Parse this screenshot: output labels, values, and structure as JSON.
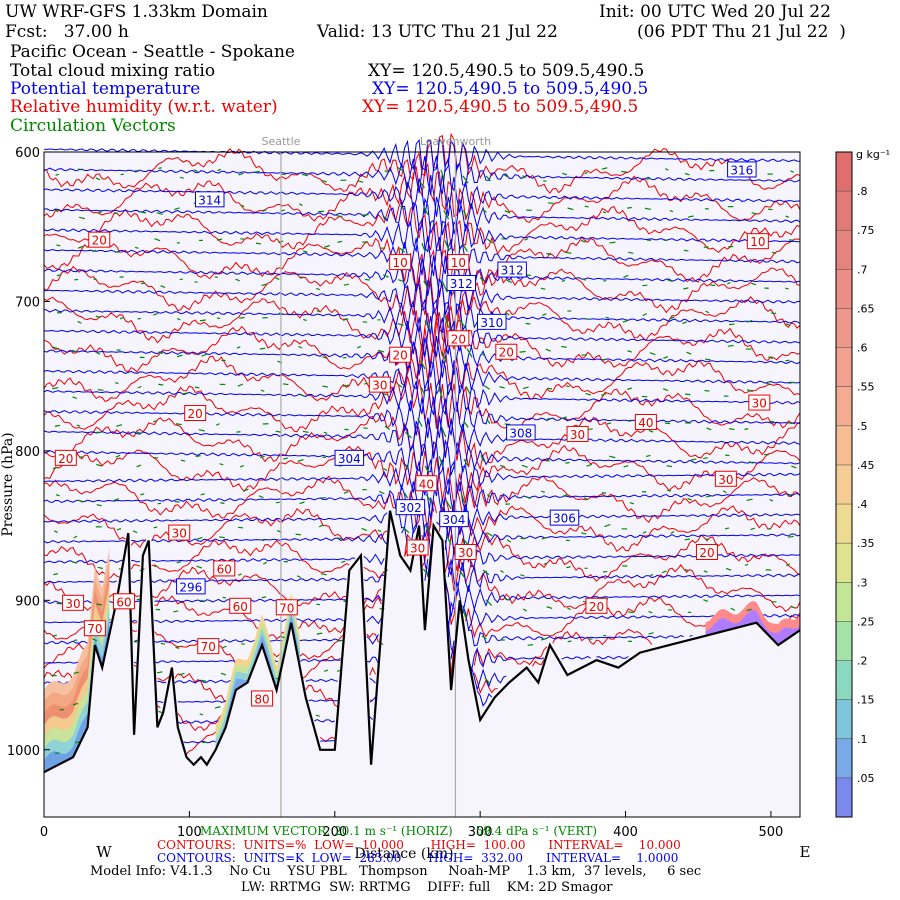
{
  "header": {
    "title": "UW WRF-GFS 1.33km Domain",
    "init": "Init: 00 UTC Wed 20 Jul 22",
    "fcst": "Fcst:   37.00 h",
    "valid": "Valid: 13 UTC Thu 21 Jul 22",
    "valid_local": "(06 PDT Thu 21 Jul 22  )",
    "region": "Pacific Ocean - Seattle - Spokane",
    "field_cloud": "Total cloud mixing ratio",
    "xy_cloud": "XY= 120.5,490.5 to 509.5,490.5",
    "field_theta": "Potential temperature",
    "xy_theta": "XY= 120.5,490.5 to 509.5,490.5",
    "field_rh": "Relative humidity (w.r.t. water)",
    "xy_rh": "XY= 120.5,490.5 to 509.5,490.5",
    "field_vectors": "Circulation Vectors"
  },
  "footer": {
    "max_vector": "MAXIMUM VECTOR: 20.1 m s⁻¹ (HORIZ)      59.4 dPa s⁻¹ (VERT)",
    "rh_contours": "CONTOURS:  UNITS=%  LOW=  10.000       HIGH=  100.00      INTERVAL=    10.000",
    "theta_contours": "CONTOURS:  UNITS=K  LOW=  283.00       HIGH=  332.00      INTERVAL=    1.0000",
    "model_info": "Model Info: V4.1.3    No Cu    YSU PBL   Thompson     Noah-MP    1.3 km,  37 levels,     6 sec",
    "model_info2": "LW: RRTMG  SW: RRTMG    DIFF: full    KM: 2D Smagor"
  },
  "colors": {
    "theta": "#0000ee",
    "rh": "#ee0000",
    "vectors": "#008800",
    "terrain": "#000000",
    "background": "#f6f4fc"
  },
  "chart_data": {
    "type": "line",
    "xlabel": "Distance (km)",
    "ylabel": "Pressure (hPa)",
    "x_ticks": [
      0,
      100,
      200,
      300,
      400,
      500
    ],
    "y_ticks": [
      600,
      700,
      800,
      900,
      1000
    ],
    "xlim": [
      0,
      520
    ],
    "ylim": [
      600,
      1045
    ],
    "y_inverted": true,
    "dir_left": "W",
    "dir_right": "E",
    "markers": [
      {
        "name": "Seattle",
        "x": 163
      },
      {
        "name": "Leavenworth",
        "x": 283
      }
    ],
    "terrain": {
      "x": [
        0,
        10,
        20,
        30,
        35,
        40,
        50,
        58,
        62,
        68,
        72,
        78,
        82,
        88,
        92,
        98,
        103,
        108,
        112,
        118,
        125,
        132,
        140,
        150,
        160,
        170,
        180,
        190,
        200,
        205,
        210,
        218,
        225,
        232,
        238,
        245,
        252,
        258,
        262,
        268,
        274,
        280,
        286,
        292,
        300,
        310,
        320,
        332,
        340,
        348,
        360,
        370,
        380,
        395,
        410,
        430,
        450,
        470,
        490,
        505,
        520
      ],
      "p": [
        1015,
        1010,
        1005,
        985,
        930,
        945,
        900,
        855,
        990,
        870,
        860,
        985,
        975,
        945,
        985,
        1005,
        1010,
        1005,
        1010,
        1000,
        985,
        960,
        955,
        930,
        960,
        915,
        965,
        1000,
        1000,
        940,
        880,
        870,
        1010,
        920,
        840,
        870,
        880,
        850,
        920,
        850,
        860,
        960,
        900,
        940,
        980,
        965,
        955,
        945,
        955,
        930,
        950,
        945,
        940,
        945,
        935,
        930,
        925,
        920,
        915,
        930,
        920
      ]
    },
    "theta_contours": {
      "units": "K",
      "low": 283.0,
      "high": 332.0,
      "interval": 1.0
    },
    "rh_contours": {
      "units": "%",
      "low": 10.0,
      "high": 100.0,
      "interval": 10.0
    },
    "theta_labels": [
      {
        "text": "316",
        "x": 480,
        "p": 612
      },
      {
        "text": "314",
        "x": 114,
        "p": 632
      },
      {
        "text": "312",
        "x": 322,
        "p": 679
      },
      {
        "text": "312",
        "x": 287,
        "p": 688
      },
      {
        "text": "310",
        "x": 308,
        "p": 714
      },
      {
        "text": "308",
        "x": 328,
        "p": 788
      },
      {
        "text": "304",
        "x": 210,
        "p": 805
      },
      {
        "text": "302",
        "x": 252,
        "p": 838
      },
      {
        "text": "304",
        "x": 282,
        "p": 846
      },
      {
        "text": "306",
        "x": 358,
        "p": 845
      },
      {
        "text": "296",
        "x": 101,
        "p": 891
      }
    ],
    "rh_labels": [
      {
        "text": "20",
        "x": 38,
        "p": 659
      },
      {
        "text": "10",
        "x": 491,
        "p": 660
      },
      {
        "text": "10",
        "x": 245,
        "p": 674
      },
      {
        "text": "10",
        "x": 285,
        "p": 674
      },
      {
        "text": "20",
        "x": 245,
        "p": 736
      },
      {
        "text": "20",
        "x": 285,
        "p": 725
      },
      {
        "text": "20",
        "x": 318,
        "p": 734
      },
      {
        "text": "30",
        "x": 231,
        "p": 756
      },
      {
        "text": "20",
        "x": 104,
        "p": 775
      },
      {
        "text": "30",
        "x": 492,
        "p": 768
      },
      {
        "text": "40",
        "x": 414,
        "p": 781
      },
      {
        "text": "30",
        "x": 367,
        "p": 789
      },
      {
        "text": "20",
        "x": 15,
        "p": 805
      },
      {
        "text": "40",
        "x": 263,
        "p": 822
      },
      {
        "text": "30",
        "x": 469,
        "p": 819
      },
      {
        "text": "30",
        "x": 93,
        "p": 855
      },
      {
        "text": "30",
        "x": 257,
        "p": 865
      },
      {
        "text": "30",
        "x": 290,
        "p": 868
      },
      {
        "text": "20",
        "x": 456,
        "p": 868
      },
      {
        "text": "60",
        "x": 124,
        "p": 879
      },
      {
        "text": "30",
        "x": 20,
        "p": 902
      },
      {
        "text": "60",
        "x": 55,
        "p": 901
      },
      {
        "text": "60",
        "x": 135,
        "p": 904
      },
      {
        "text": "70",
        "x": 167,
        "p": 905
      },
      {
        "text": "20",
        "x": 380,
        "p": 904
      },
      {
        "text": "70",
        "x": 35,
        "p": 919
      },
      {
        "text": "70",
        "x": 113,
        "p": 931
      },
      {
        "text": "80",
        "x": 150,
        "p": 966
      }
    ],
    "cloud_colorbar": {
      "units": "g kg⁻¹",
      "levels": [
        0.05,
        0.1,
        0.15,
        0.2,
        0.25,
        0.3,
        0.35,
        0.4,
        0.45,
        0.5,
        0.55,
        0.6,
        0.65,
        0.7,
        0.75,
        0.8
      ],
      "tick_labels": [
        ".8",
        ".75",
        ".7",
        ".65",
        ".6",
        ".55",
        ".5",
        ".45",
        ".4",
        ".35",
        ".3",
        ".25",
        ".2",
        ".15",
        ".1",
        ".05"
      ]
    }
  }
}
